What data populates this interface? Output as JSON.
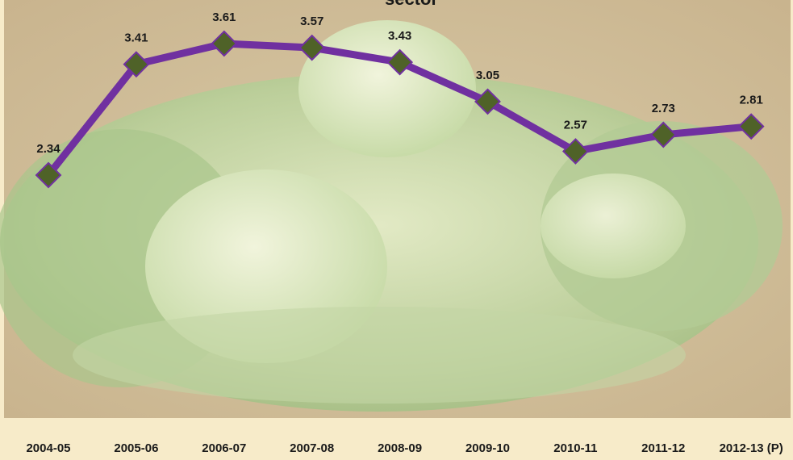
{
  "chart_data": {
    "type": "line",
    "title": "sector",
    "categories": [
      "2004-05",
      "2005-06",
      "2006-07",
      "2007-08",
      "2008-09",
      "2009-10",
      "2010-11",
      "2011-12",
      "2012-13 (P)"
    ],
    "values": [
      2.34,
      3.41,
      3.61,
      3.57,
      3.43,
      3.05,
      2.57,
      2.73,
      2.81
    ],
    "color": "#7030a0",
    "marker_color": "#4f6228"
  }
}
